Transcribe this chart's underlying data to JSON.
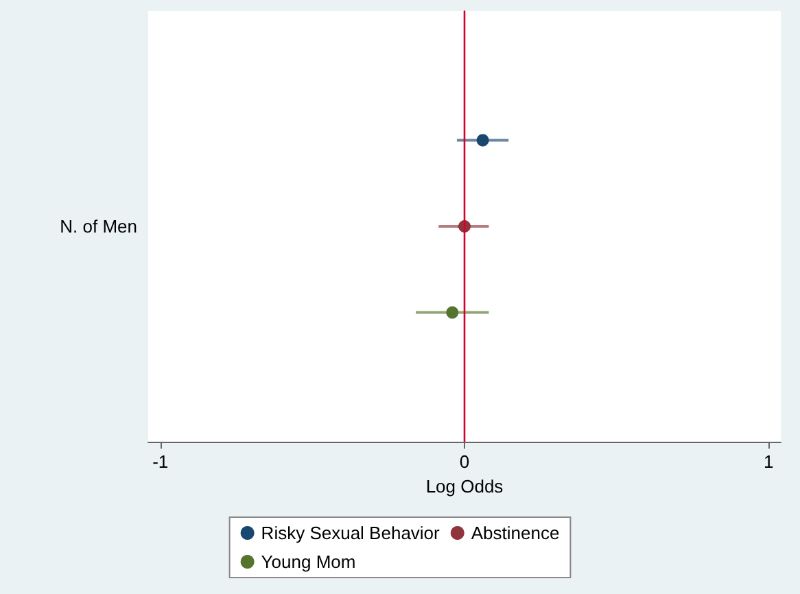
{
  "chart_data": {
    "type": "scatter",
    "orientation": "horizontal",
    "xlabel": "Log Odds",
    "categories": [
      null,
      null,
      "N. of Men",
      null,
      null
    ],
    "xlim": [
      -1.04,
      1.04
    ],
    "xticks": [
      -1,
      0,
      1
    ],
    "marker": "circle",
    "legend": "bottom",
    "ref_lines": [
      {
        "axis": "x",
        "value": 0,
        "color": "#d5002b"
      }
    ],
    "series": [
      {
        "name": "Risky Sexual Behavior",
        "color": "#1a476f",
        "values": [
          null,
          0.06,
          null,
          null,
          null
        ],
        "errors": [
          null,
          [
            -0.025,
            0.145
          ],
          null,
          null,
          null
        ]
      },
      {
        "name": "Abstinence",
        "color": "#90353b",
        "values": [
          null,
          null,
          0.0,
          null,
          null
        ],
        "errors": [
          null,
          null,
          [
            -0.085,
            0.08
          ],
          null,
          null
        ]
      },
      {
        "name": "Young Mom",
        "color": "#55752f",
        "values": [
          null,
          null,
          null,
          -0.04,
          null
        ],
        "errors": [
          null,
          null,
          null,
          [
            -0.16,
            0.08
          ],
          null
        ]
      }
    ]
  }
}
